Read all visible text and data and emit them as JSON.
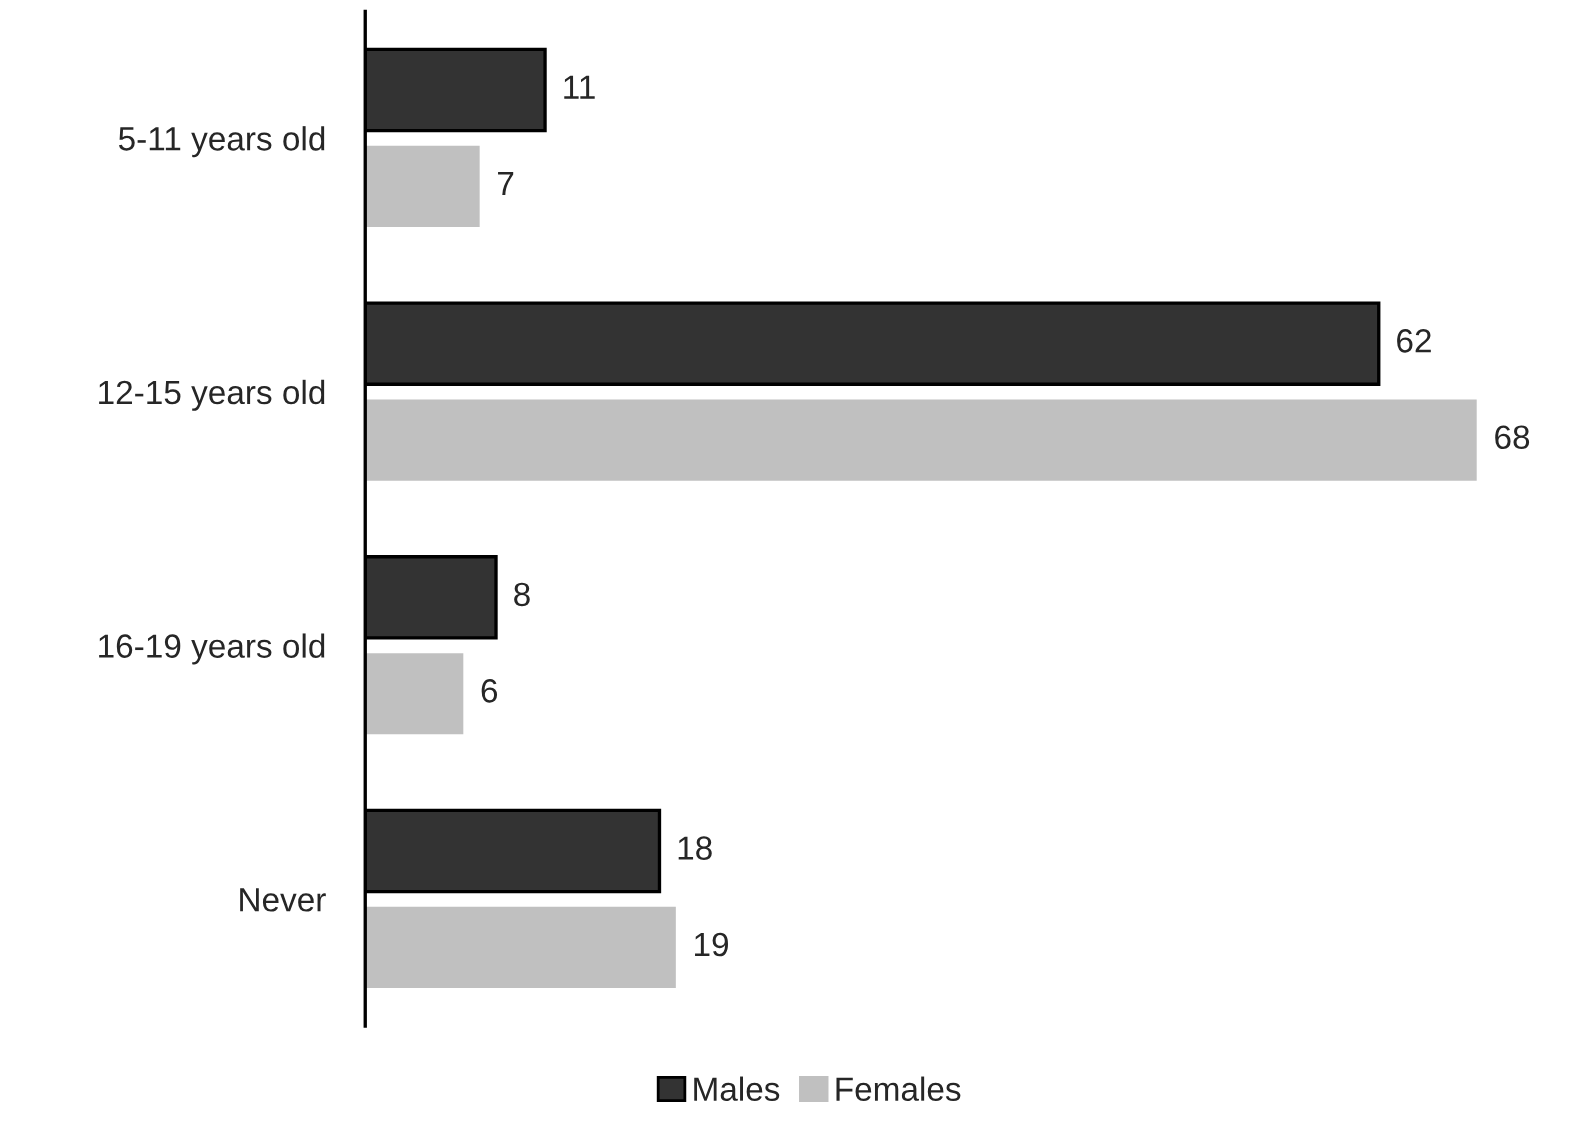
{
  "chart_data": {
    "type": "bar",
    "orientation": "horizontal",
    "categories": [
      "5-11 years old",
      "12-15 years old",
      "16-19 years old",
      "Never"
    ],
    "series": [
      {
        "name": "Males",
        "color": "#333333",
        "values": [
          11,
          62,
          8,
          18
        ]
      },
      {
        "name": "Females",
        "color": "#c0c0c0",
        "values": [
          7,
          68,
          6,
          19
        ]
      }
    ],
    "data_labels": true,
    "legend": "bottom",
    "grid": false
  }
}
